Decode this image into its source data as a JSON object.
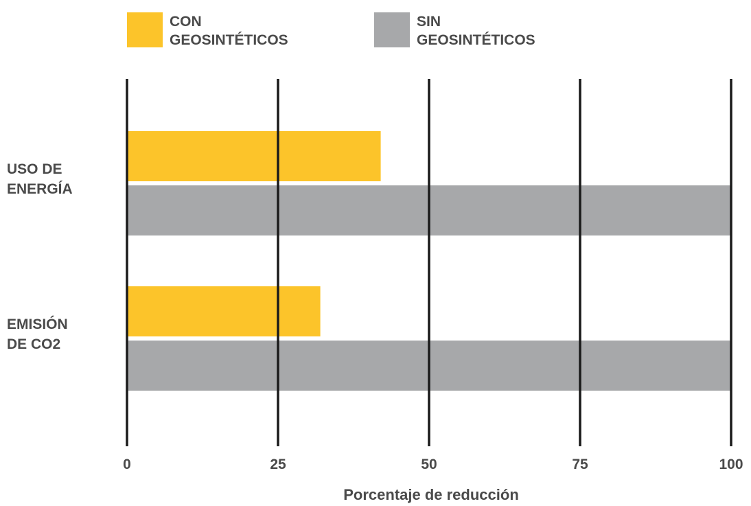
{
  "chart_data": {
    "type": "bar",
    "orientation": "horizontal",
    "categories": [
      [
        "USO DE",
        "ENERGÍA"
      ],
      [
        "EMISIÓN",
        "DE CO2"
      ]
    ],
    "series": [
      {
        "name": [
          "CON",
          "GEOSINTÉTICOS"
        ],
        "color": "#fcc42a",
        "values": [
          42,
          32
        ]
      },
      {
        "name": [
          "SIN",
          "GEOSINTÉTICOS"
        ],
        "color": "#a7a8aa",
        "values": [
          100,
          100
        ]
      }
    ],
    "xticks": [
      0,
      25,
      50,
      75,
      100
    ],
    "xlim": [
      0,
      100
    ],
    "xlabel": "Porcentaje de reducción",
    "ylabel": "",
    "title": "",
    "grid": "vertical",
    "legend_position": "top"
  }
}
